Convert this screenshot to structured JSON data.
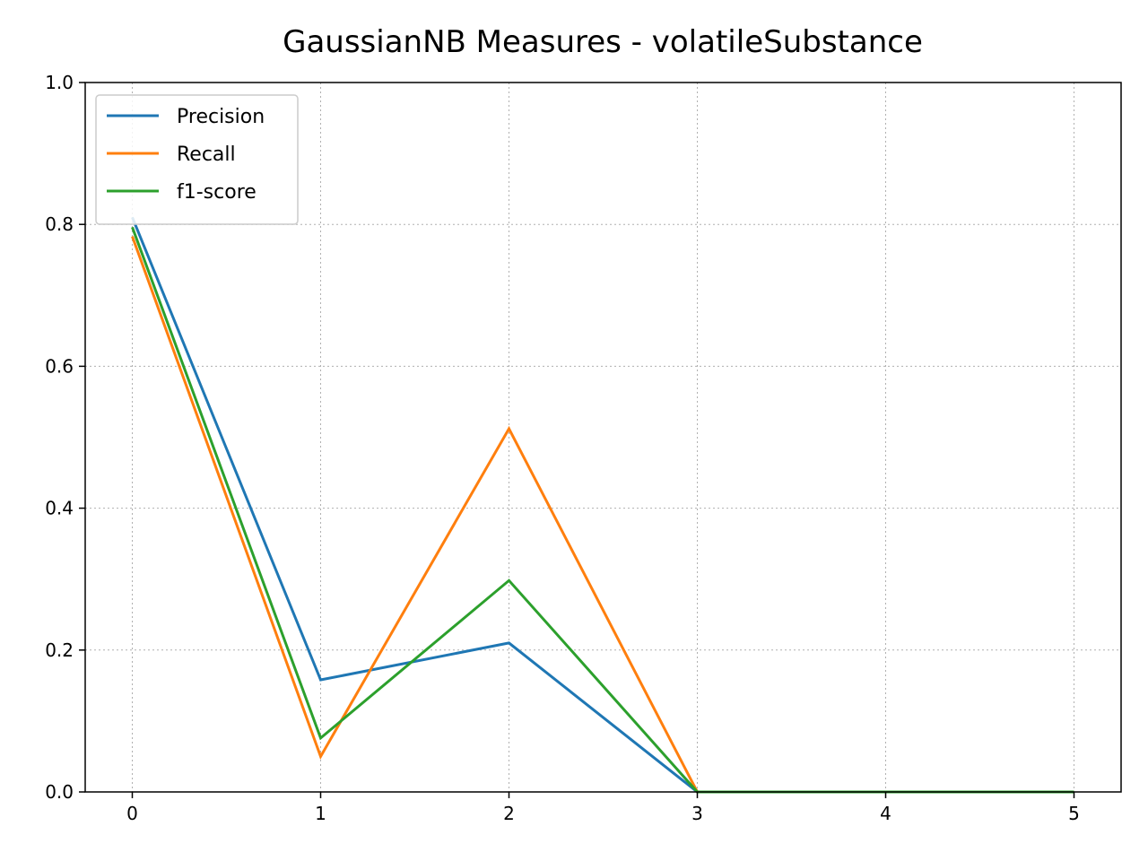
{
  "chart_data": {
    "type": "line",
    "title": "GaussianNB Measures - volatileSubstance",
    "xlabel": "",
    "ylabel": "",
    "x": [
      0,
      1,
      2,
      3,
      4,
      5
    ],
    "xticks": [
      "0",
      "1",
      "2",
      "3",
      "4",
      "5"
    ],
    "yticks": [
      "0.0",
      "0.2",
      "0.4",
      "0.6",
      "0.8",
      "1.0"
    ],
    "xlim": [
      -0.25,
      5.25
    ],
    "ylim": [
      0,
      1
    ],
    "grid": true,
    "legend_position": "top-left",
    "series": [
      {
        "name": "Precision",
        "color": "#1f77b4",
        "values": [
          0.81,
          0.158,
          0.21,
          0.0,
          0.0,
          0.0
        ]
      },
      {
        "name": "Recall",
        "color": "#ff7f0e",
        "values": [
          0.783,
          0.05,
          0.512,
          0.0,
          0.0,
          0.0
        ]
      },
      {
        "name": "f1-score",
        "color": "#2ca02c",
        "values": [
          0.796,
          0.076,
          0.298,
          0.0,
          0.0,
          0.0
        ]
      }
    ]
  }
}
